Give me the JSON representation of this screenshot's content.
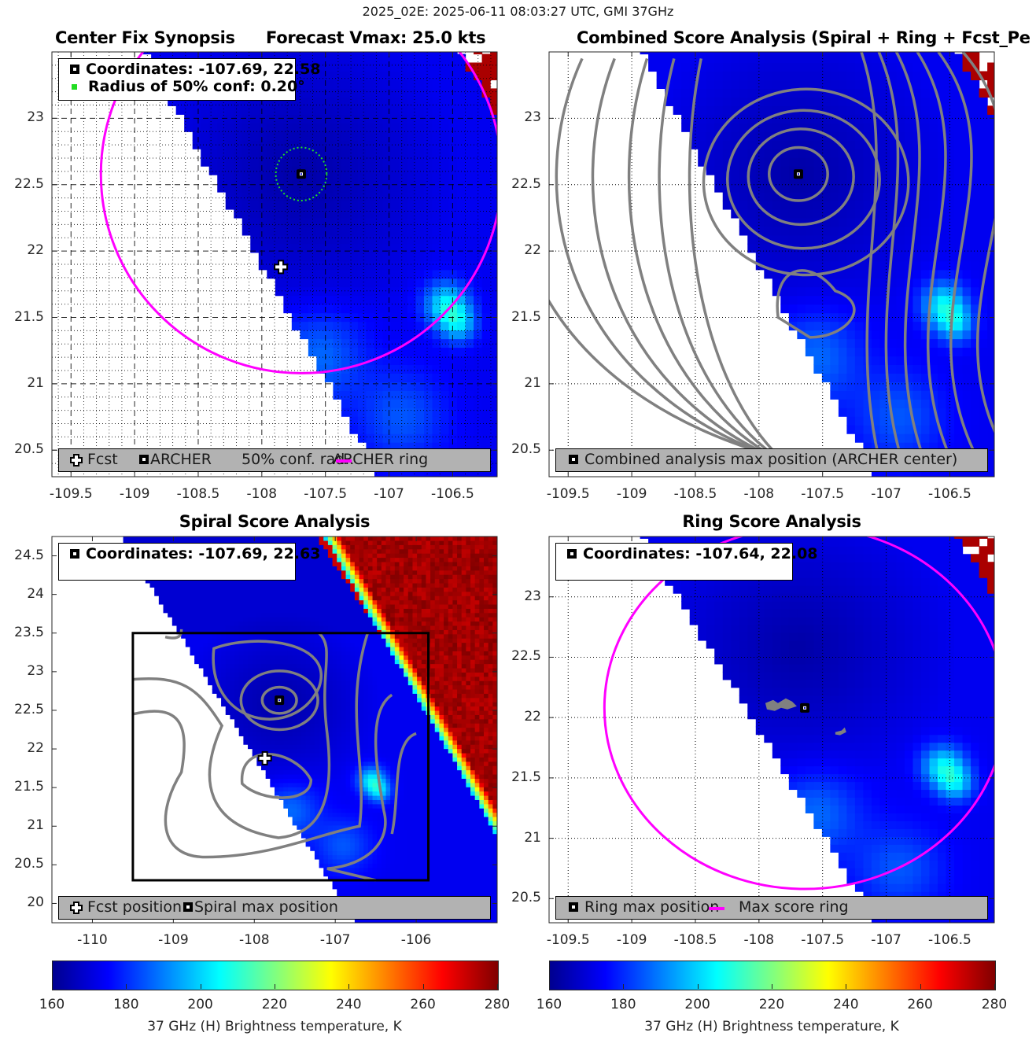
{
  "figure": {
    "suptitle": "2025_02E: 2025-06-11 08:03:27 UTC, GMI 37GHz"
  },
  "colormap": {
    "name": "jet",
    "stops": [
      "#00008f",
      "#0000ff",
      "#0080ff",
      "#00ffff",
      "#80ff80",
      "#ffff00",
      "#ff8000",
      "#ff0000",
      "#800000"
    ]
  },
  "colors": {
    "ring": "#ff00ff",
    "conf_circle": "#22dd22",
    "contour": "#808080",
    "legend_gray": "#b2b2b2",
    "missing": "#ffffff"
  },
  "chart_data": [
    {
      "type": "heatmap",
      "id": "center_fix",
      "title_left": "Center Fix Synopsis",
      "title_right": "Forecast Vmax: 25.0 kts",
      "xlim": [
        -109.65,
        -106.15
      ],
      "ylim": [
        20.3,
        23.5
      ],
      "xticks": [
        -109.5,
        -109,
        -108.5,
        -108,
        -107.5,
        -107,
        -106.5
      ],
      "xtick_labels": [
        "-109.5",
        "-109",
        "-108.5",
        "-108",
        "-107.5",
        "-107",
        "-106.5"
      ],
      "yticks": [
        20.5,
        21,
        21.5,
        22,
        22.5,
        23
      ],
      "ytick_labels": [
        "20.5",
        "21",
        "21.5",
        "22",
        "22.5",
        "23"
      ],
      "grid": "dashed-major-dotted-minor",
      "info_legend": {
        "lines": [
          "Coordinates: -107.69, 22.58",
          "Radius of 50% conf: 0.20°"
        ]
      },
      "legend": {
        "placement": "bottom",
        "items": [
          "Fcst",
          "ARCHER",
          "50% conf. rad.",
          "ARCHER ring"
        ]
      },
      "archer_center": [
        -107.69,
        22.58
      ],
      "conf_radius_deg": 0.2,
      "fcst_position": [
        -107.85,
        21.88
      ],
      "ring": {
        "center": [
          -107.69,
          22.58
        ],
        "radius_deg": 1.5
      },
      "contours": false,
      "colorbar_label": "37 GHz (H) Brightness temperature, K",
      "clim": [
        160,
        280
      ]
    },
    {
      "type": "heatmap",
      "id": "combined",
      "title": "Combined Score Analysis (Spiral + Ring + Fcst_Pe",
      "xlim": [
        -109.65,
        -106.15
      ],
      "ylim": [
        20.3,
        23.5
      ],
      "xticks": [
        -109.5,
        -109,
        -108.5,
        -108,
        -107.5,
        -107,
        -106.5
      ],
      "xtick_labels": [
        "-109.5",
        "-109",
        "-108.5",
        "-108",
        "-107.5",
        "-107",
        "-106.5"
      ],
      "yticks": [
        20.5,
        21,
        21.5,
        22,
        22.5,
        23
      ],
      "ytick_labels": [
        "20.5",
        "21",
        "21.5",
        "22",
        "22.5",
        "23"
      ],
      "grid": "dotted",
      "legend": {
        "placement": "bottom",
        "items": [
          "Combined analysis max position (ARCHER center)"
        ]
      },
      "archer_center": [
        -107.69,
        22.58
      ],
      "contours": true,
      "contour_center": [
        -107.69,
        22.58
      ]
    },
    {
      "type": "heatmap",
      "id": "spiral",
      "title": "Spiral Score Analysis",
      "xlim": [
        -110.5,
        -105.0
      ],
      "ylim": [
        19.75,
        24.75
      ],
      "xticks": [
        -110,
        -109,
        -108,
        -107,
        -106
      ],
      "xtick_labels": [
        "-110",
        "-109",
        "-108",
        "-107",
        "-106"
      ],
      "yticks": [
        20,
        20.5,
        21,
        21.5,
        22,
        22.5,
        23,
        23.5,
        24,
        24.5
      ],
      "ytick_labels": [
        "20",
        "20.5",
        "21",
        "21.5",
        "22",
        "22.5",
        "23",
        "23.5",
        "24",
        "24.5"
      ],
      "grid": "none",
      "info_legend": {
        "lines": [
          "Coordinates: -107.69, 22.63"
        ]
      },
      "legend": {
        "placement": "bottom",
        "items": [
          "Fcst position",
          "Spiral max position"
        ]
      },
      "spiral_max": [
        -107.69,
        22.63
      ],
      "fcst_position": [
        -107.87,
        21.88
      ],
      "zoom_box": {
        "x": [
          -109.5,
          -105.85
        ],
        "y": [
          20.3,
          23.5
        ]
      },
      "contours": true
    },
    {
      "type": "heatmap",
      "id": "ring",
      "title": "Ring Score Analysis",
      "xlim": [
        -109.65,
        -106.15
      ],
      "ylim": [
        20.3,
        23.5
      ],
      "xticks": [
        -109.5,
        -109,
        -108.5,
        -108,
        -107.5,
        -107,
        -106.5
      ],
      "xtick_labels": [
        "-109.5",
        "-109",
        "-108.5",
        "-108",
        "-107.5",
        "-107",
        "-106.5"
      ],
      "yticks": [
        20.5,
        21,
        21.5,
        22,
        22.5,
        23
      ],
      "ytick_labels": [
        "20.5",
        "21",
        "21.5",
        "22",
        "22.5",
        "23"
      ],
      "grid": "dotted",
      "info_legend": {
        "lines": [
          "Coordinates: -107.64, 22.08"
        ]
      },
      "legend": {
        "placement": "bottom",
        "items": [
          "Ring max position",
          "Max score ring"
        ]
      },
      "ring_max": [
        -107.64,
        22.08
      ],
      "ring": {
        "center": [
          -107.64,
          22.08
        ],
        "radius_deg": 1.5
      },
      "contours": false
    }
  ],
  "colorbars": [
    {
      "ticks": [
        160,
        180,
        200,
        220,
        240,
        260,
        280
      ],
      "tick_labels": [
        "160",
        "180",
        "200",
        "220",
        "240",
        "260",
        "280"
      ],
      "label": "37 GHz (H) Brightness temperature, K"
    },
    {
      "ticks": [
        160,
        180,
        200,
        220,
        240,
        260,
        280
      ],
      "tick_labels": [
        "160",
        "180",
        "200",
        "220",
        "240",
        "260",
        "280"
      ],
      "label": "37 GHz (H) Brightness temperature, K"
    }
  ]
}
